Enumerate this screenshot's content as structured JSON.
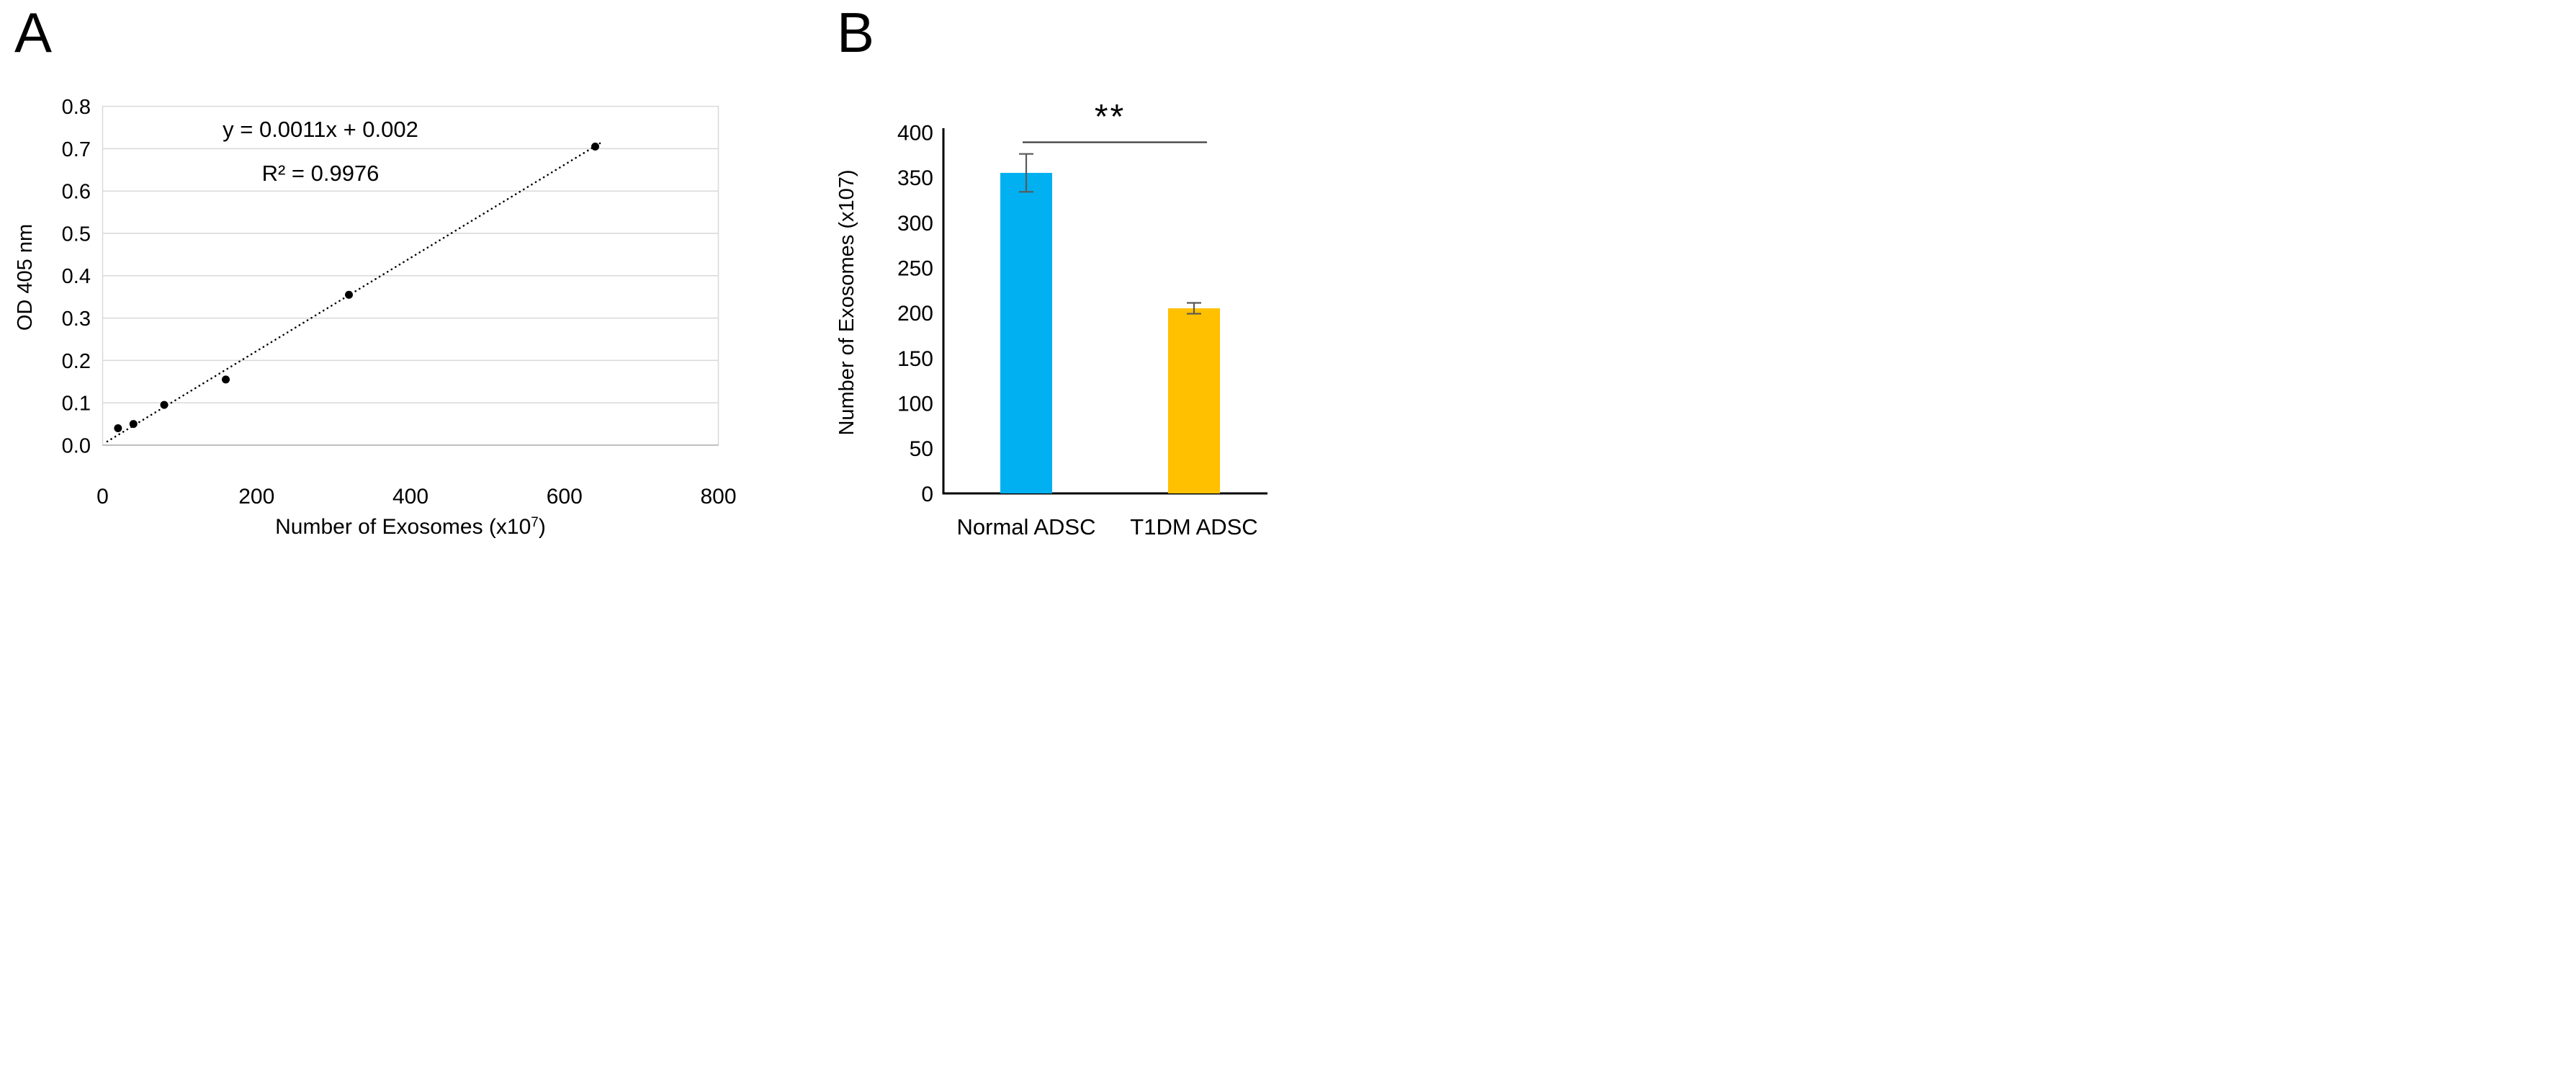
{
  "panels": {
    "a": {
      "label": "A"
    },
    "b": {
      "label": "B"
    }
  },
  "chart_data": [
    {
      "type": "scatter",
      "panel": "A",
      "title": "",
      "xlabel": "Number of Exosomes (x10^7)",
      "ylabel": "OD 405 nm",
      "x": [
        20,
        40,
        80,
        160,
        320,
        640
      ],
      "y": [
        0.04,
        0.05,
        0.095,
        0.155,
        0.355,
        0.705
      ],
      "xlim": [
        0,
        800
      ],
      "ylim": [
        0,
        0.8
      ],
      "xticks": [
        0,
        200,
        400,
        600,
        800
      ],
      "yticks": [
        0,
        0.1,
        0.2,
        0.3,
        0.4,
        0.5,
        0.6,
        0.7,
        0.8
      ],
      "grid": "horizontal",
      "legend": "none",
      "annotations": {
        "equation": "y = 0.0011x + 0.002",
        "r_squared": "R² = 0.9976"
      },
      "trendline": {
        "slope": 0.0011,
        "intercept": 0.002,
        "style": "dotted",
        "x_start": 6,
        "x_end": 650
      },
      "colors": {
        "points": "#000000",
        "trendline": "#000000",
        "gridlines": "#d9d9d9",
        "baseline": "#bfbfbf",
        "text": "#000000"
      }
    },
    {
      "type": "bar",
      "panel": "B",
      "title": "",
      "categories": [
        "Normal ADSC",
        "T1DM ADSC"
      ],
      "values": [
        355,
        205
      ],
      "errors": [
        21,
        6
      ],
      "ylabel": "Number of Exosomes (x107)",
      "ylim": [
        0,
        400
      ],
      "yticks": [
        0,
        50,
        100,
        150,
        200,
        250,
        300,
        350,
        400
      ],
      "grid": "none",
      "legend": "none",
      "significance": {
        "label": "**"
      },
      "colors": {
        "bars": [
          "#00b0f0",
          "#ffc000"
        ],
        "error_bars": "#595959",
        "axis": "#000000",
        "significance_line": "#3f3f3f",
        "text": "#000000"
      }
    }
  ]
}
